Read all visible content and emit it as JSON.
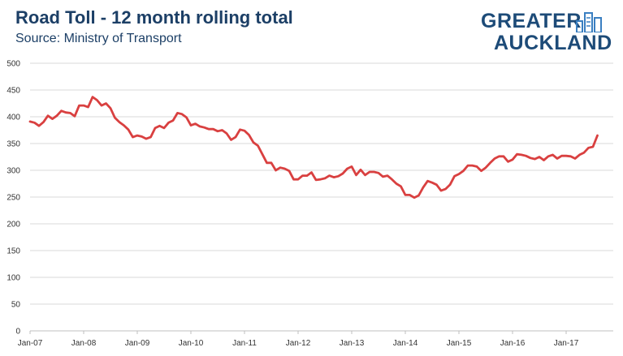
{
  "header": {
    "title": "Road Toll - 12 month rolling total",
    "subtitle": "Source: Ministry of Transport"
  },
  "logo": {
    "line1": "GREATER",
    "line2": "AUCKLAND",
    "icon": "city-buildings-icon",
    "color": "#1d4b78"
  },
  "chart_data": {
    "type": "line",
    "title": "Road Toll - 12 month rolling total",
    "subtitle": "Source: Ministry of Transport",
    "xlabel": "",
    "ylabel": "",
    "ylim": [
      0,
      500
    ],
    "yticks": [
      0,
      50,
      100,
      150,
      200,
      250,
      300,
      350,
      400,
      450,
      500
    ],
    "xtick_labels": [
      "Jan-07",
      "Jan-08",
      "Jan-09",
      "Jan-10",
      "Jan-11",
      "Jan-12",
      "Jan-13",
      "Jan-14",
      "Jan-15",
      "Jan-16",
      "Jan-17"
    ],
    "grid": "horizontal",
    "legend": "none",
    "line_color": "#d94040",
    "series": [
      {
        "x_start": "Jan-07",
        "frequency": "monthly",
        "values": [
          391,
          389,
          383,
          390,
          402,
          396,
          402,
          411,
          408,
          407,
          401,
          421,
          421,
          418,
          437,
          431,
          421,
          425,
          416,
          398,
          390,
          384,
          376,
          362,
          365,
          363,
          359,
          362,
          379,
          383,
          379,
          389,
          393,
          407,
          405,
          399,
          384,
          387,
          382,
          380,
          377,
          377,
          373,
          375,
          369,
          357,
          362,
          376,
          374,
          366,
          352,
          346,
          330,
          314,
          314,
          300,
          305,
          303,
          299,
          283,
          283,
          290,
          290,
          296,
          282,
          283,
          285,
          290,
          287,
          289,
          294,
          303,
          307,
          291,
          301,
          291,
          297,
          297,
          295,
          288,
          290,
          283,
          275,
          270,
          254,
          254,
          249,
          253,
          268,
          280,
          277,
          273,
          262,
          265,
          273,
          289,
          293,
          299,
          309,
          309,
          307,
          299,
          305,
          314,
          322,
          326,
          326,
          316,
          320,
          330,
          329,
          327,
          323,
          321,
          325,
          319,
          326,
          329,
          322,
          327,
          327,
          326,
          322,
          329,
          333,
          342,
          344,
          365
        ]
      }
    ]
  }
}
